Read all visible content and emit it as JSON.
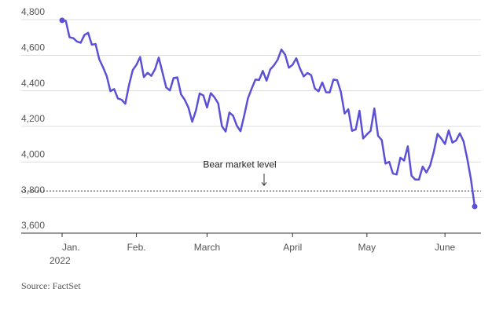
{
  "chart_data": {
    "type": "line",
    "categories": [
      "Jan.",
      null,
      null,
      null,
      null,
      null,
      null,
      null,
      null,
      null,
      null,
      null,
      null,
      null,
      null,
      null,
      null,
      null,
      null,
      null,
      "Feb.",
      null,
      null,
      null,
      null,
      null,
      null,
      null,
      null,
      null,
      null,
      null,
      null,
      null,
      null,
      null,
      null,
      null,
      null,
      "March",
      null,
      null,
      null,
      null,
      null,
      null,
      null,
      null,
      null,
      null,
      null,
      null,
      null,
      null,
      null,
      null,
      null,
      null,
      null,
      null,
      null,
      null,
      "April",
      null,
      null,
      null,
      null,
      null,
      null,
      null,
      null,
      null,
      null,
      null,
      null,
      null,
      null,
      null,
      null,
      null,
      null,
      null,
      "May",
      null,
      null,
      null,
      null,
      null,
      null,
      null,
      null,
      null,
      null,
      null,
      null,
      null,
      null,
      null,
      null,
      null,
      null,
      null,
      null,
      "June",
      null,
      null,
      null,
      null,
      null,
      null,
      null,
      null
    ],
    "x_axis_year": "2022",
    "series": [
      {
        "color": "#5b50d6",
        "values": [
          4796,
          4793,
          4701,
          4696,
          4677,
          4670,
          4713,
          4726,
          4659,
          4663,
          4577,
          4533,
          4483,
          4398,
          4410,
          4357,
          4350,
          4327,
          4432,
          4516,
          4546,
          4590,
          4477,
          4501,
          4484,
          4521,
          4587,
          4504,
          4419,
          4402,
          4472,
          4475,
          4380,
          4349,
          4305,
          4226,
          4289,
          4385,
          4374,
          4306,
          4387,
          4363,
          4329,
          4201,
          4171,
          4278,
          4260,
          4204,
          4173,
          4262,
          4358,
          4412,
          4463,
          4461,
          4512,
          4457,
          4520,
          4543,
          4575,
          4632,
          4603,
          4530,
          4546,
          4583,
          4525,
          4481,
          4500,
          4488,
          4413,
          4397,
          4447,
          4392,
          4391,
          4463,
          4460,
          4394,
          4272,
          4296,
          4175,
          4183,
          4288,
          4132,
          4155,
          4175,
          4301,
          4147,
          4123,
          3991,
          4001,
          3935,
          3930,
          4024,
          4008,
          4088,
          3923,
          3901,
          3901,
          3974,
          3941,
          3979,
          4058,
          4158,
          4132,
          4101,
          4177,
          4109,
          4121,
          4161,
          4116,
          4018,
          3901,
          3750
        ]
      }
    ],
    "ylim": [
      3600,
      4800
    ],
    "yticks": [
      {
        "value": 3600,
        "label": "3,600"
      },
      {
        "value": 3800,
        "label": "3,800"
      },
      {
        "value": 4000,
        "label": "4,000"
      },
      {
        "value": 4200,
        "label": "4,200"
      },
      {
        "value": 4400,
        "label": "4,400"
      },
      {
        "value": 4600,
        "label": "4,600"
      },
      {
        "value": 4800,
        "label": "4,800"
      }
    ],
    "grid": true,
    "annotation": {
      "text": "Bear market level",
      "value": 3837
    },
    "source": "Source: FactSet"
  }
}
